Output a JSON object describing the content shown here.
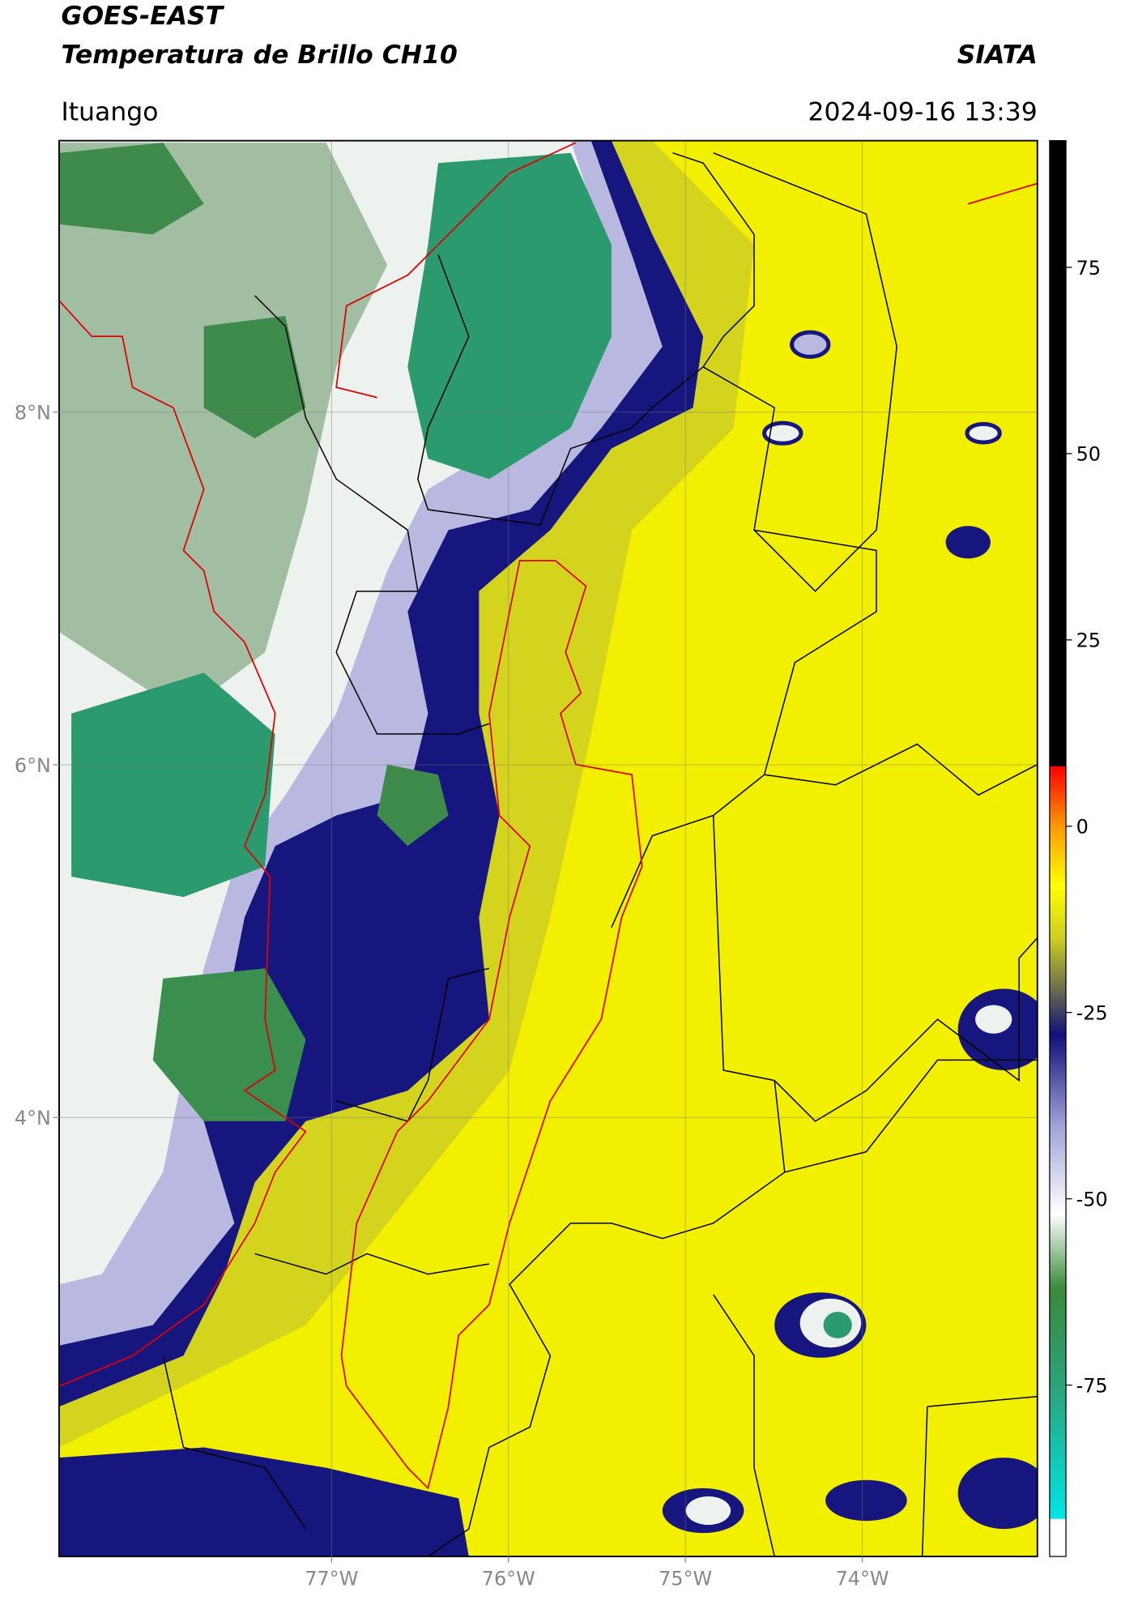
{
  "header": {
    "title": "GOES-EAST",
    "subtitle": "Temperatura de Brillo CH10",
    "source": "SIATA",
    "location": "Ituango",
    "datetime": "2024-09-16 13:39"
  },
  "map": {
    "xlim": [
      -78.54,
      -73.01
    ],
    "ylim": [
      1.51,
      9.54
    ],
    "grid": true,
    "xticks": [
      {
        "value": -77,
        "label": "77°W"
      },
      {
        "value": -76,
        "label": "76°W"
      },
      {
        "value": -75,
        "label": "75°W"
      },
      {
        "value": -74,
        "label": "74°W"
      }
    ],
    "yticks": [
      {
        "value": 8,
        "label": "8°N"
      },
      {
        "value": 6,
        "label": "6°N"
      },
      {
        "value": 4,
        "label": "4°N"
      }
    ]
  },
  "colorbar": {
    "clim": [
      -98,
      92
    ],
    "ticks": [
      75,
      50,
      25,
      0,
      -25,
      -50,
      -75
    ],
    "colormap": [
      {
        "value": -98,
        "color": "#ffffff"
      },
      {
        "value": -93,
        "color": "#ffffff"
      },
      {
        "value": -92.9,
        "color": "#00e5e5"
      },
      {
        "value": -75,
        "color": "#2aa37a"
      },
      {
        "value": -62,
        "color": "#3a8a3a"
      },
      {
        "value": -52,
        "color": "#ffffff"
      },
      {
        "value": -40,
        "color": "#a0a0d8"
      },
      {
        "value": -28,
        "color": "#10107a"
      },
      {
        "value": -22,
        "color": "#6a6a50"
      },
      {
        "value": -15,
        "color": "#cfcf20"
      },
      {
        "value": -8,
        "color": "#ffff00"
      },
      {
        "value": 0,
        "color": "#ff9900"
      },
      {
        "value": 8,
        "color": "#ff0000"
      },
      {
        "value": 8.1,
        "color": "#000000"
      },
      {
        "value": 92,
        "color": "#000000"
      }
    ]
  }
}
